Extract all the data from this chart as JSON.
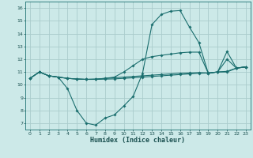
{
  "xlabel": "Humidex (Indice chaleur)",
  "background_color": "#cce9e8",
  "grid_color": "#aacccc",
  "line_color": "#1a6e6e",
  "xlim": [
    -0.5,
    23.5
  ],
  "ylim": [
    6.5,
    16.5
  ],
  "xticks": [
    0,
    1,
    2,
    3,
    4,
    5,
    6,
    7,
    8,
    9,
    10,
    11,
    12,
    13,
    14,
    15,
    16,
    17,
    18,
    19,
    20,
    21,
    22,
    23
  ],
  "yticks": [
    7,
    8,
    9,
    10,
    11,
    12,
    13,
    14,
    15,
    16
  ],
  "line1_y": [
    10.5,
    11.0,
    10.7,
    10.6,
    9.7,
    8.0,
    7.0,
    6.85,
    7.4,
    7.65,
    8.35,
    9.1,
    10.9,
    14.7,
    15.5,
    15.75,
    15.8,
    14.5,
    13.3,
    10.9,
    11.0,
    12.0,
    11.3,
    11.4
  ],
  "line2_y": [
    10.5,
    11.0,
    10.7,
    10.6,
    10.5,
    10.45,
    10.42,
    10.42,
    10.44,
    10.46,
    10.5,
    10.55,
    10.6,
    10.65,
    10.7,
    10.75,
    10.8,
    10.85,
    10.9,
    10.92,
    11.0,
    11.05,
    11.3,
    11.4
  ],
  "line3_y": [
    10.5,
    11.0,
    10.7,
    10.6,
    10.5,
    10.45,
    10.42,
    10.44,
    10.5,
    10.6,
    11.0,
    11.5,
    12.0,
    12.2,
    12.3,
    12.4,
    12.5,
    12.55,
    12.55,
    10.9,
    11.0,
    12.6,
    11.3,
    11.4
  ],
  "line4_y": [
    10.5,
    11.0,
    10.7,
    10.6,
    10.5,
    10.45,
    10.42,
    10.44,
    10.5,
    10.55,
    10.6,
    10.65,
    10.7,
    10.75,
    10.8,
    10.85,
    10.9,
    10.92,
    10.95,
    10.92,
    11.0,
    11.0,
    11.3,
    11.4
  ]
}
